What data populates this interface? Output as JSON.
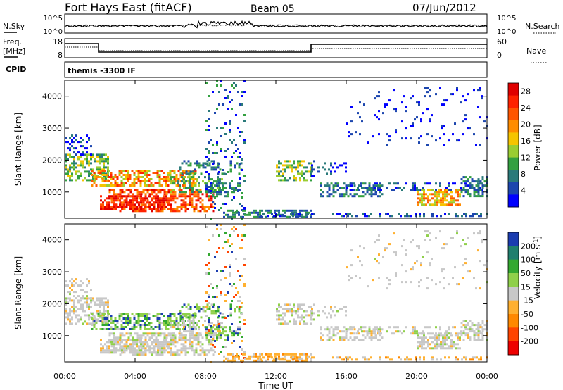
{
  "header": {
    "station": "Fort Hays East (fitACF)",
    "beam": "Beam 05",
    "date": "07/Jun/2012"
  },
  "strip_panels": {
    "nsky": {
      "label": "N.Sky",
      "ticks": [
        "10^5",
        "10^0"
      ]
    },
    "nsearch": {
      "label": "N.Search",
      "ticks": [
        "10^5",
        "10^0"
      ]
    },
    "freq": {
      "label_line1": "Freq.",
      "label_line2": "[MHz]",
      "ticks": [
        "18",
        "8"
      ]
    },
    "nave": {
      "label": "Nave",
      "ticks": [
        "60",
        "0"
      ]
    },
    "cpid": {
      "label": "CPID",
      "value": "themis -3300 IF"
    }
  },
  "chart_data": [
    {
      "type": "heatmap",
      "name": "power",
      "ylabel": "Slant Range [km]",
      "xlabel": "",
      "x_ticks": [
        "00:00",
        "04:00",
        "08:00",
        "12:00",
        "16:00",
        "20:00",
        "00:00"
      ],
      "xlim_hours": [
        0,
        24
      ],
      "y_ticks": [
        1000,
        2000,
        3000,
        4000
      ],
      "ylim_km": [
        180,
        4500
      ],
      "colorbar": {
        "label": "Power [dB]",
        "ticks": [
          "4",
          "8",
          "12",
          "16",
          "20",
          "24",
          "28"
        ],
        "colors": [
          "#0000ff",
          "#1c46ae",
          "#2a7a7a",
          "#33a040",
          "#9acd32",
          "#f5c400",
          "#ff8c00",
          "#ff5500",
          "#ff2200",
          "#e00000"
        ]
      }
    },
    {
      "type": "heatmap",
      "name": "velocity",
      "ylabel": "Slant Range [km]",
      "xlabel": "Time UT",
      "x_ticks": [
        "00:00",
        "04:00",
        "08:00",
        "12:00",
        "16:00",
        "20:00",
        "00:00"
      ],
      "xlim_hours": [
        0,
        24
      ],
      "y_ticks": [
        1000,
        2000,
        3000,
        4000
      ],
      "ylim_km": [
        180,
        4500
      ],
      "colorbar": {
        "label": "Velocity [m s",
        "label_sup": "-1",
        "label_end": "]",
        "ticks": [
          "200",
          "100",
          "50",
          "15",
          "-15",
          "-50",
          "-100",
          "-200"
        ],
        "colors": [
          "#1a3cb0",
          "#1f7f6e",
          "#33a830",
          "#8fd04a",
          "#c8c8c8",
          "#ffb030",
          "#ff8800",
          "#ff4400",
          "#ee0000"
        ]
      }
    }
  ]
}
